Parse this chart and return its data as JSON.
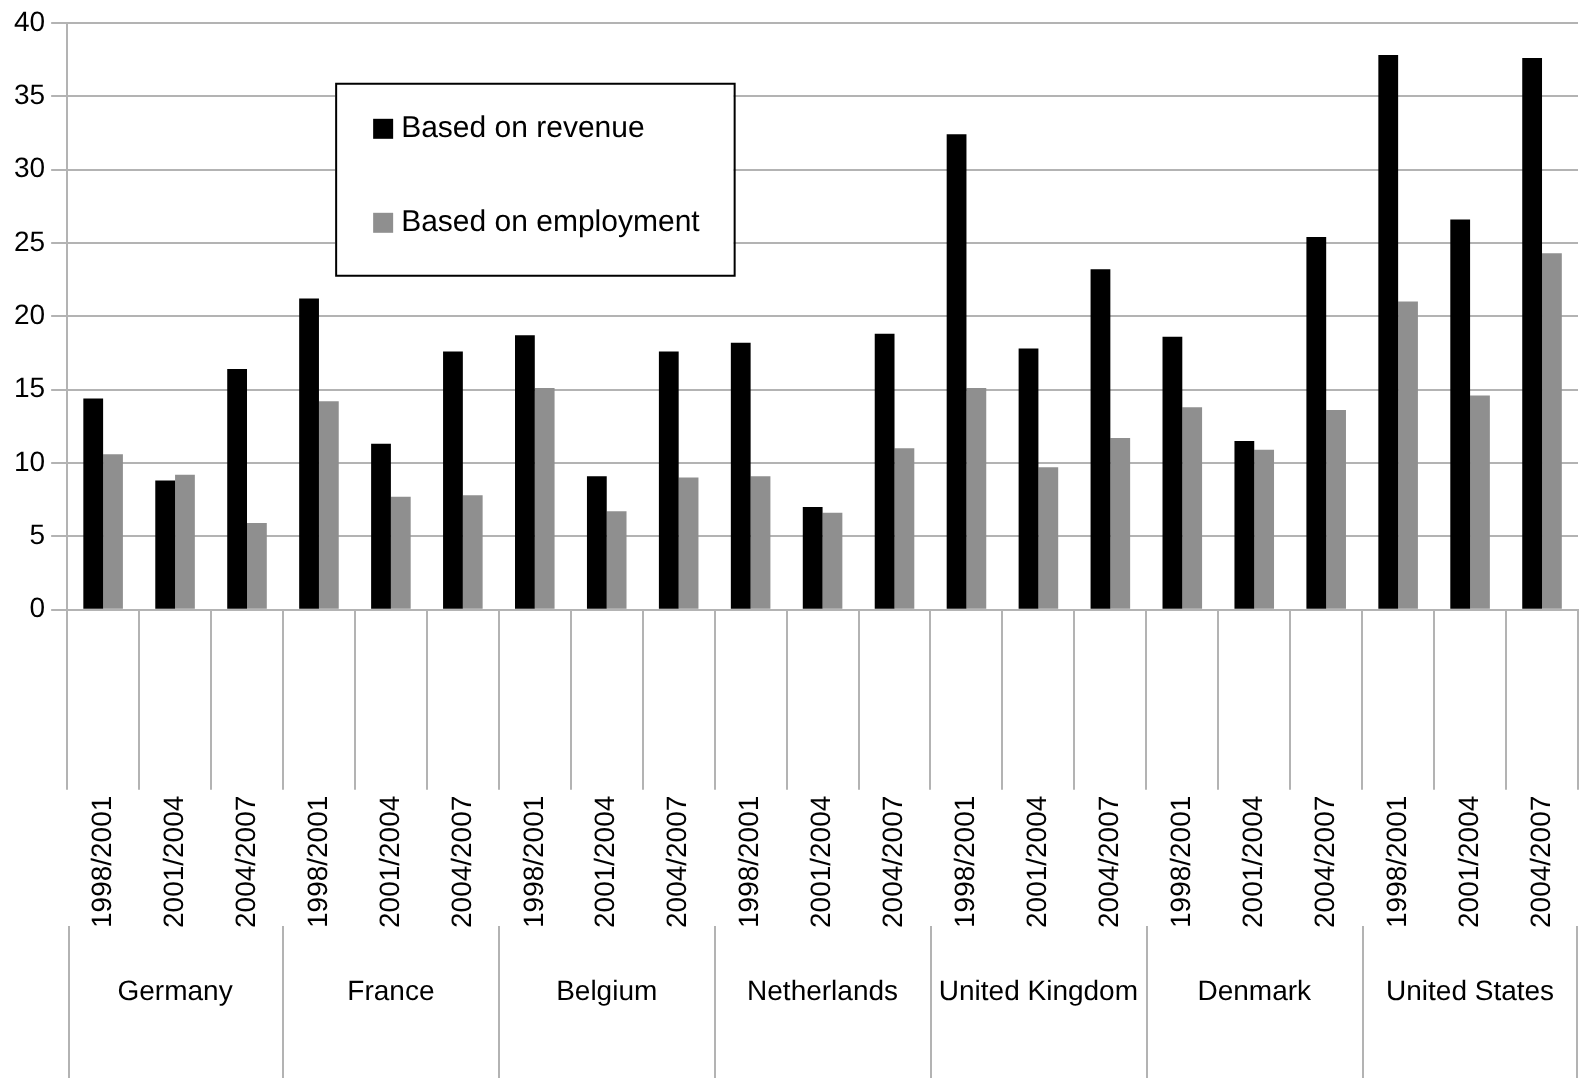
{
  "chart_data": {
    "type": "bar",
    "categories": [
      "1998/2001",
      "2001/2004",
      "2004/2007",
      "1998/2001",
      "2001/2004",
      "2004/2007",
      "1998/2001",
      "2001/2004",
      "2004/2007",
      "1998/2001",
      "2001/2004",
      "2004/2007",
      "1998/2001",
      "2001/2004",
      "2004/2007",
      "1998/2001",
      "2001/2004",
      "2004/2007",
      "1998/2001",
      "2001/2004",
      "2004/2007"
    ],
    "series": [
      {
        "name": "Based on revenue",
        "color": "#000000",
        "values": [
          14.4,
          8.8,
          16.4,
          21.2,
          11.3,
          17.6,
          18.7,
          9.1,
          17.6,
          18.2,
          7.0,
          18.8,
          32.4,
          17.8,
          23.2,
          18.6,
          11.5,
          25.4,
          37.8,
          26.6,
          37.6
        ]
      },
      {
        "name": "Based on employment",
        "color": "#8f8f8f",
        "values": [
          10.6,
          9.2,
          5.9,
          14.2,
          7.7,
          7.8,
          15.1,
          6.7,
          9.0,
          9.1,
          6.6,
          11.0,
          15.1,
          9.7,
          11.7,
          13.8,
          10.9,
          13.6,
          21.0,
          14.6,
          24.3
        ]
      }
    ],
    "annotations": [
      "Germany",
      "France",
      "Belgium",
      "Netherlands",
      "United Kingdom",
      "Denmark",
      "United States"
    ],
    "ylim": [
      0,
      40
    ],
    "yticks": [
      0,
      5,
      10,
      15,
      20,
      25,
      30,
      35,
      40
    ],
    "grid": "y",
    "legend": "top left"
  }
}
